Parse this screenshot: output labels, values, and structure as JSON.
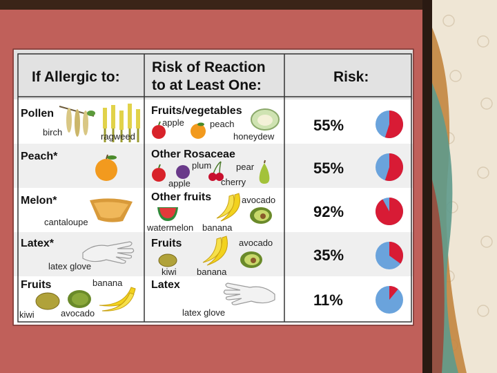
{
  "colors": {
    "slide_bg": "#c0605a",
    "header_bg": "#e2e2e2",
    "row_band": "#efefef",
    "pie_red": "#d81b35",
    "pie_blue": "#6aa3dc"
  },
  "header": {
    "col1": "If Allergic to:",
    "col2_line1": "Risk of Reaction",
    "col2_line2": "to at Least One:",
    "col3": "Risk:"
  },
  "rows": [
    {
      "allergen": "Pollen",
      "allergen_items": [
        "birch",
        "ragweed"
      ],
      "related": "Fruits/vegetables",
      "related_items": [
        "apple",
        "peach",
        "honeydew"
      ],
      "risk": "55%",
      "risk_fraction": 0.55
    },
    {
      "allergen": "Peach*",
      "allergen_items": [],
      "related": "Other Rosaceae",
      "related_items": [
        "plum",
        "pear",
        "apple",
        "cherry"
      ],
      "risk": "55%",
      "risk_fraction": 0.55
    },
    {
      "allergen": "Melon*",
      "allergen_items": [
        "cantaloupe"
      ],
      "related": "Other fruits",
      "related_items": [
        "avocado",
        "watermelon",
        "banana"
      ],
      "risk": "92%",
      "risk_fraction": 0.92
    },
    {
      "allergen": "Latex*",
      "allergen_items": [
        "latex glove"
      ],
      "related": "Fruits",
      "related_items": [
        "avocado",
        "kiwi",
        "banana"
      ],
      "risk": "35%",
      "risk_fraction": 0.35
    },
    {
      "allergen": "Fruits",
      "allergen_items": [
        "banana",
        "kiwi",
        "avocado"
      ],
      "related": "Latex",
      "related_items": [
        "latex glove"
      ],
      "risk": "11%",
      "risk_fraction": 0.11
    }
  ]
}
